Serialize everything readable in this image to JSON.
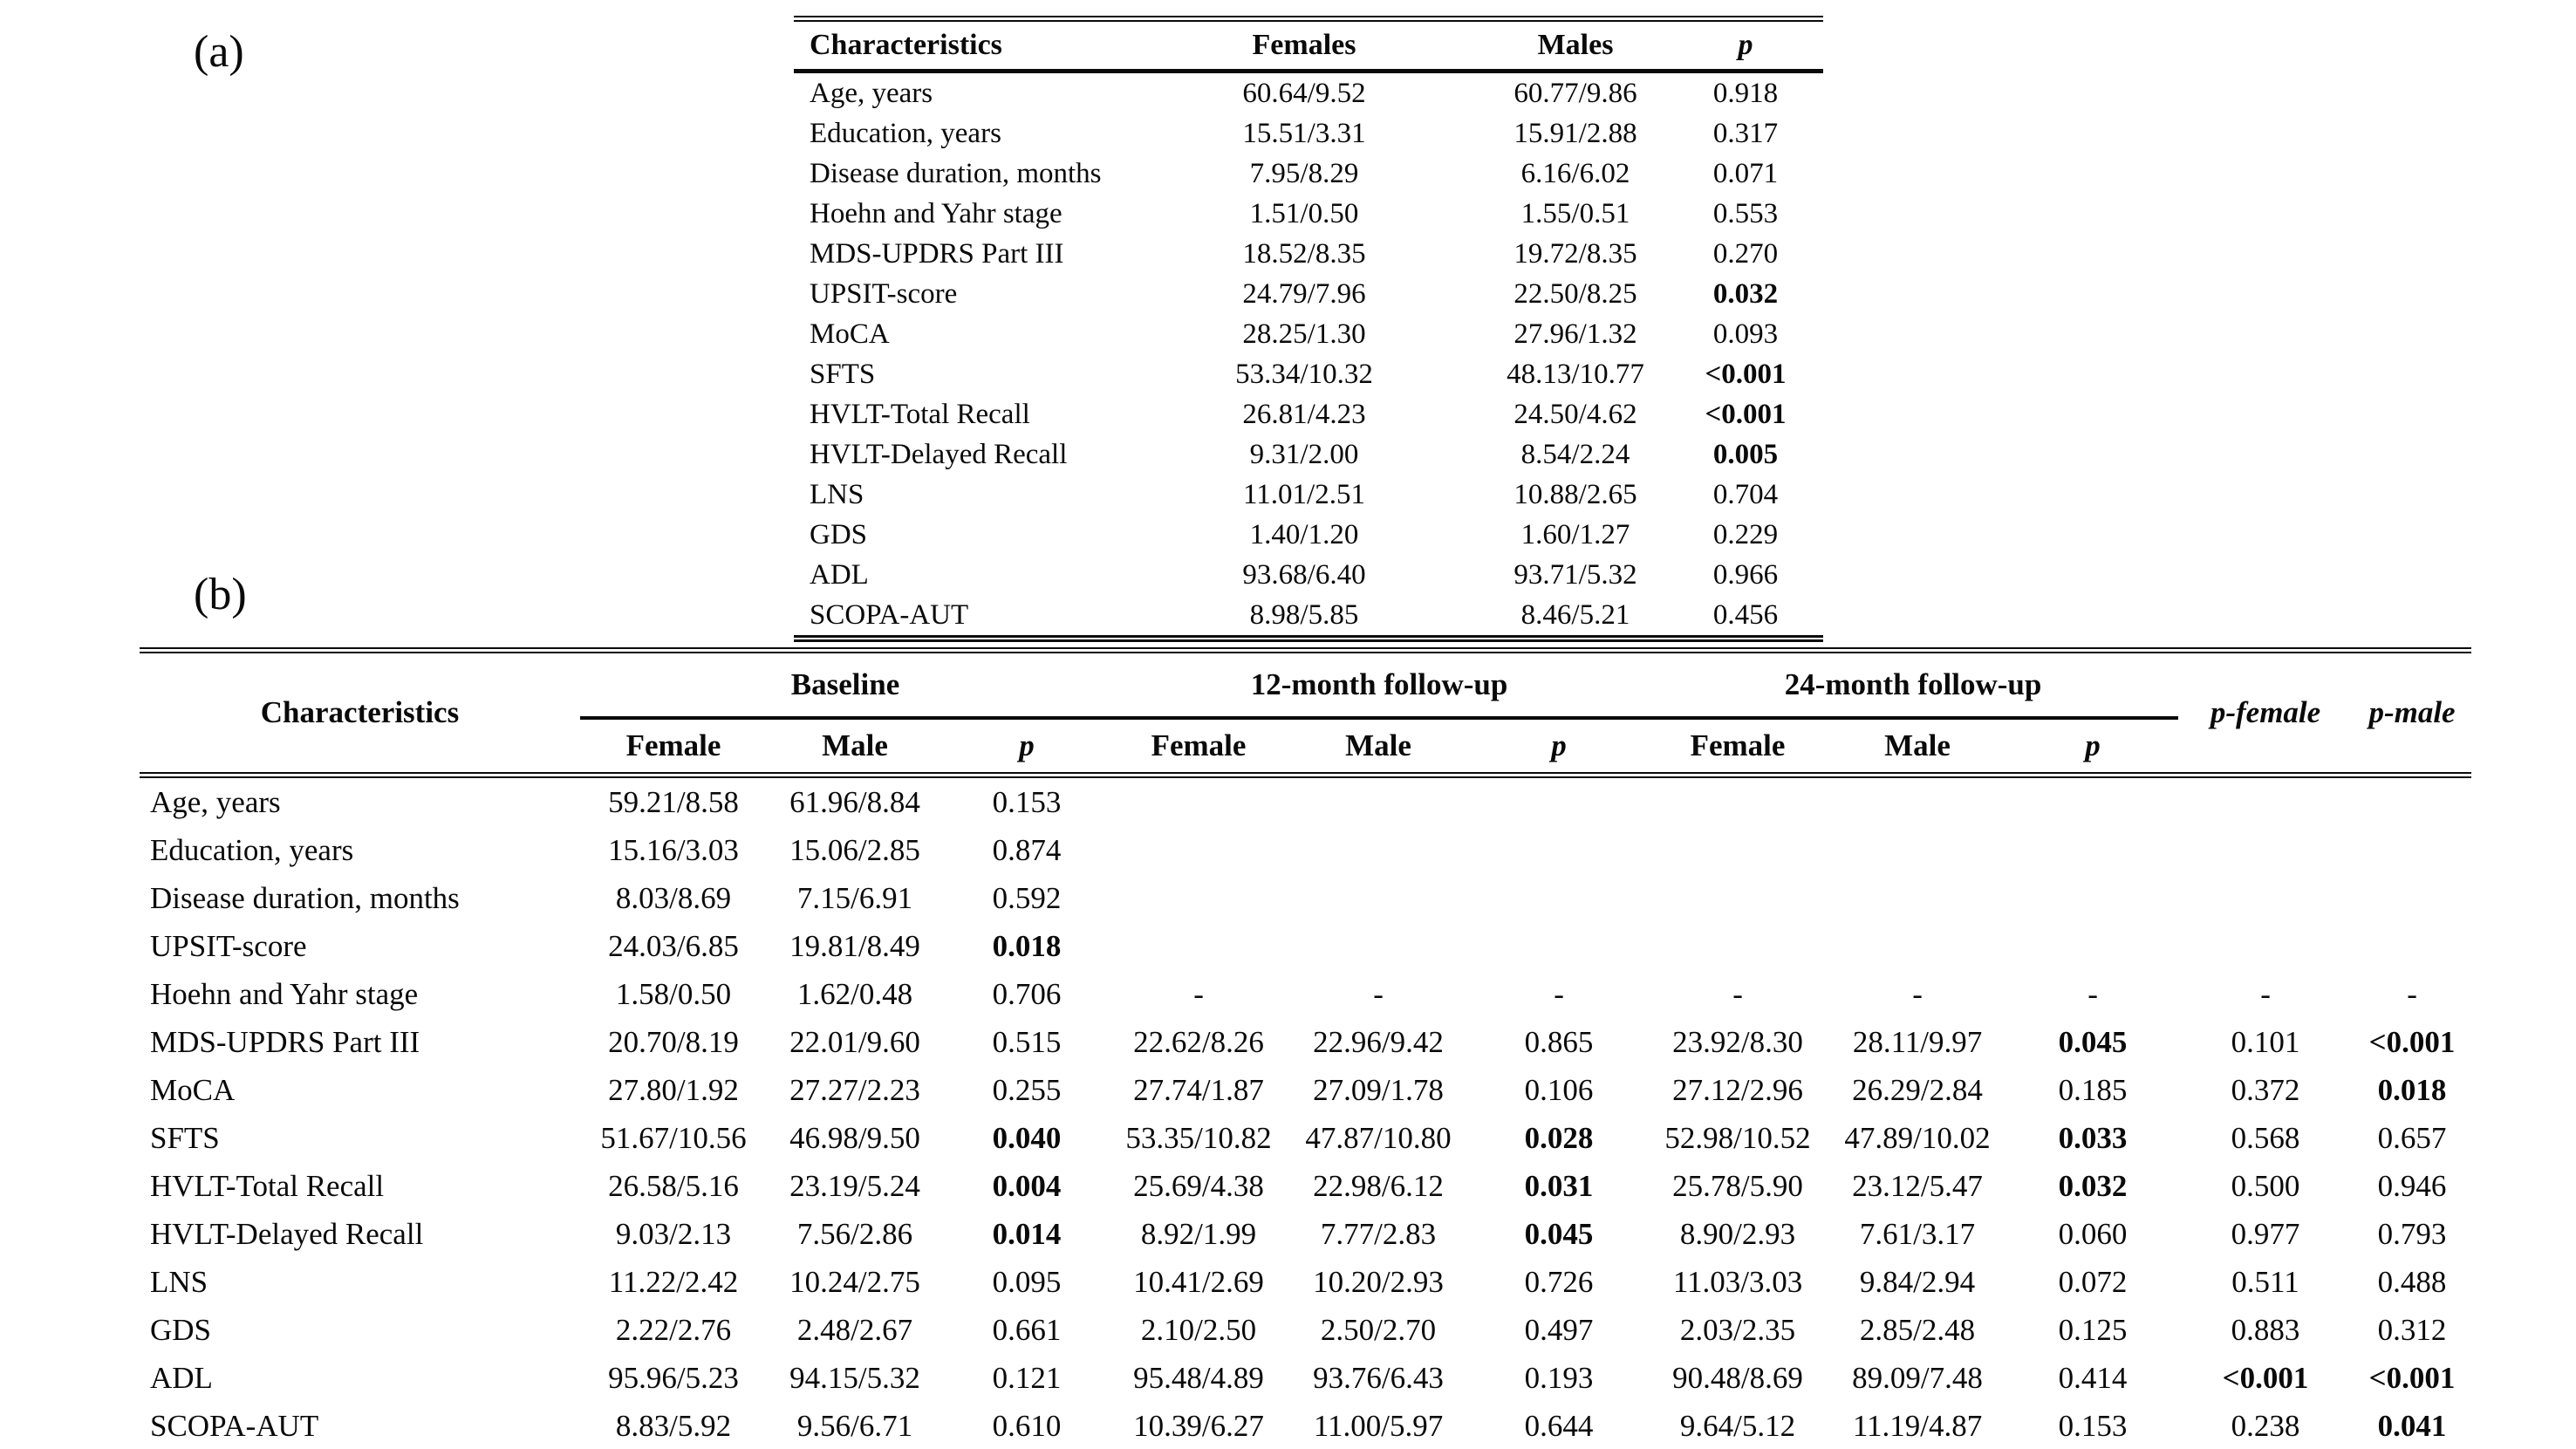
{
  "panel_a": {
    "label": "(a)",
    "columns": {
      "characteristics": "Characteristics",
      "females": "Females",
      "males": "Males",
      "p": "p"
    },
    "rows": [
      {
        "name": "Age, years",
        "females": "60.64/9.52",
        "males": "60.77/9.86",
        "p": "0.918",
        "bold_p": false
      },
      {
        "name": "Education, years",
        "females": "15.51/3.31",
        "males": "15.91/2.88",
        "p": "0.317",
        "bold_p": false
      },
      {
        "name": "Disease duration, months",
        "females": "7.95/8.29",
        "males": "6.16/6.02",
        "p": "0.071",
        "bold_p": false
      },
      {
        "name": "Hoehn and Yahr stage",
        "females": "1.51/0.50",
        "males": "1.55/0.51",
        "p": "0.553",
        "bold_p": false
      },
      {
        "name": "MDS-UPDRS Part III",
        "females": "18.52/8.35",
        "males": "19.72/8.35",
        "p": "0.270",
        "bold_p": false
      },
      {
        "name": "UPSIT-score",
        "females": "24.79/7.96",
        "males": "22.50/8.25",
        "p": "0.032",
        "bold_p": true
      },
      {
        "name": "MoCA",
        "females": "28.25/1.30",
        "males": "27.96/1.32",
        "p": "0.093",
        "bold_p": false
      },
      {
        "name": "SFTS",
        "females": "53.34/10.32",
        "males": "48.13/10.77",
        "p": "<0.001",
        "bold_p": true
      },
      {
        "name": "HVLT-Total Recall",
        "females": "26.81/4.23",
        "males": "24.50/4.62",
        "p": "<0.001",
        "bold_p": true
      },
      {
        "name": "HVLT-Delayed Recall",
        "females": "9.31/2.00",
        "males": "8.54/2.24",
        "p": "0.005",
        "bold_p": true
      },
      {
        "name": "LNS",
        "females": "11.01/2.51",
        "males": "10.88/2.65",
        "p": "0.704",
        "bold_p": false
      },
      {
        "name": "GDS",
        "females": "1.40/1.20",
        "males": "1.60/1.27",
        "p": "0.229",
        "bold_p": false
      },
      {
        "name": "ADL",
        "females": "93.68/6.40",
        "males": "93.71/5.32",
        "p": "0.966",
        "bold_p": false
      },
      {
        "name": "SCOPA-AUT",
        "females": "8.98/5.85",
        "males": "8.46/5.21",
        "p": "0.456",
        "bold_p": false
      }
    ]
  },
  "panel_b": {
    "label": "(b)",
    "characteristics_header": "Characteristics",
    "p_female_header": "p-female",
    "p_male_header": "p-male",
    "groups": [
      {
        "label": "Baseline",
        "sub": [
          "Female",
          "Male",
          "p"
        ]
      },
      {
        "label": "12-month follow-up",
        "sub": [
          "Female",
          "Male",
          "p"
        ]
      },
      {
        "label": "24-month follow-up",
        "sub": [
          "Female",
          "Male",
          "p"
        ]
      }
    ],
    "rows": [
      {
        "name": "Age, years",
        "cells": [
          "59.21/8.58",
          "61.96/8.84",
          "0.153",
          "",
          "",
          "",
          "",
          "",
          "",
          "",
          ""
        ]
      },
      {
        "name": "Education, years",
        "cells": [
          "15.16/3.03",
          "15.06/2.85",
          "0.874",
          "",
          "",
          "",
          "",
          "",
          "",
          "",
          ""
        ]
      },
      {
        "name": "Disease duration, months",
        "cells": [
          "8.03/8.69",
          "7.15/6.91",
          "0.592",
          "",
          "",
          "",
          "",
          "",
          "",
          "",
          ""
        ]
      },
      {
        "name": "UPSIT-score",
        "cells": [
          "24.03/6.85",
          "19.81/8.49",
          {
            "v": "0.018",
            "b": true
          },
          "",
          "",
          "",
          "",
          "",
          "",
          "",
          ""
        ]
      },
      {
        "name": "Hoehn and Yahr stage",
        "cells": [
          "1.58/0.50",
          "1.62/0.48",
          "0.706",
          "-",
          "-",
          "-",
          "-",
          "-",
          "-",
          "-",
          "-"
        ]
      },
      {
        "name": "MDS-UPDRS Part III",
        "cells": [
          "20.70/8.19",
          "22.01/9.60",
          "0.515",
          "22.62/8.26",
          "22.96/9.42",
          "0.865",
          "23.92/8.30",
          "28.11/9.97",
          {
            "v": "0.045",
            "b": true
          },
          "0.101",
          {
            "v": "<0.001",
            "b": true
          }
        ]
      },
      {
        "name": "MoCA",
        "cells": [
          "27.80/1.92",
          "27.27/2.23",
          "0.255",
          "27.74/1.87",
          "27.09/1.78",
          "0.106",
          "27.12/2.96",
          "26.29/2.84",
          "0.185",
          "0.372",
          {
            "v": "0.018",
            "b": true
          }
        ]
      },
      {
        "name": "SFTS",
        "cells": [
          "51.67/10.56",
          "46.98/9.50",
          {
            "v": "0.040",
            "b": true
          },
          "53.35/10.82",
          "47.87/10.80",
          {
            "v": "0.028",
            "b": true
          },
          "52.98/10.52",
          "47.89/10.02",
          {
            "v": "0.033",
            "b": true
          },
          "0.568",
          "0.657"
        ]
      },
      {
        "name": "HVLT-Total Recall",
        "cells": [
          "26.58/5.16",
          "23.19/5.24",
          {
            "v": "0.004",
            "b": true
          },
          "25.69/4.38",
          "22.98/6.12",
          {
            "v": "0.031",
            "b": true
          },
          "25.78/5.90",
          "23.12/5.47",
          {
            "v": "0.032",
            "b": true
          },
          "0.500",
          "0.946"
        ]
      },
      {
        "name": "HVLT-Delayed Recall",
        "cells": [
          "9.03/2.13",
          "7.56/2.86",
          {
            "v": "0.014",
            "b": true
          },
          "8.92/1.99",
          "7.77/2.83",
          {
            "v": "0.045",
            "b": true
          },
          "8.90/2.93",
          "7.61/3.17",
          "0.060",
          "0.977",
          "0.793"
        ]
      },
      {
        "name": "LNS",
        "cells": [
          "11.22/2.42",
          "10.24/2.75",
          "0.095",
          "10.41/2.69",
          "10.20/2.93",
          "0.726",
          "11.03/3.03",
          "9.84/2.94",
          "0.072",
          "0.511",
          "0.488"
        ]
      },
      {
        "name": "GDS",
        "cells": [
          "2.22/2.76",
          "2.48/2.67",
          "0.661",
          "2.10/2.50",
          "2.50/2.70",
          "0.497",
          "2.03/2.35",
          "2.85/2.48",
          "0.125",
          "0.883",
          "0.312"
        ]
      },
      {
        "name": "ADL",
        "cells": [
          "95.96/5.23",
          "94.15/5.32",
          "0.121",
          "95.48/4.89",
          "93.76/6.43",
          "0.193",
          "90.48/8.69",
          "89.09/7.48",
          "0.414",
          {
            "v": "<0.001",
            "b": true
          },
          {
            "v": "<0.001",
            "b": true
          }
        ]
      },
      {
        "name": "SCOPA-AUT",
        "cells": [
          "8.83/5.92",
          "9.56/6.71",
          "0.610",
          "10.39/6.27",
          "11.00/5.97",
          "0.644",
          "9.64/5.12",
          "11.19/4.87",
          "0.153",
          "0.238",
          {
            "v": "0.041",
            "b": true
          }
        ]
      }
    ]
  }
}
